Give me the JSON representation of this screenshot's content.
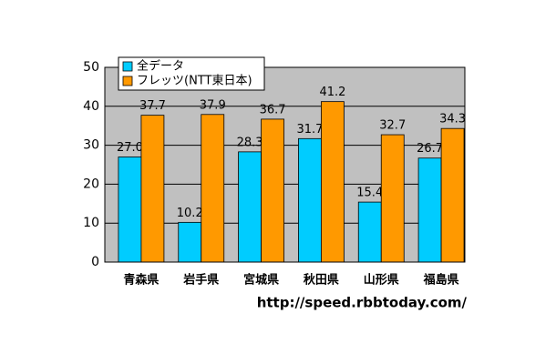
{
  "chart_data": {
    "type": "bar",
    "categories": [
      "青森県",
      "岩手県",
      "宮城県",
      "秋田県",
      "山形県",
      "福島県"
    ],
    "series": [
      {
        "name": "全データ",
        "color": "#00ccff",
        "values": [
          27.0,
          10.2,
          28.3,
          31.7,
          15.4,
          26.7
        ],
        "value_labels": [
          "27.0",
          "10.2",
          "28.3",
          "31.7",
          "15.4",
          "26.7"
        ]
      },
      {
        "name": "フレッツ(NTT東日本)",
        "color": "#ff9900",
        "values": [
          37.7,
          37.9,
          36.7,
          41.2,
          32.7,
          34.3
        ]
      }
    ],
    "ylim": [
      0,
      50
    ],
    "yticks": [
      0,
      10,
      20,
      30,
      40,
      50
    ],
    "grid": true,
    "legend": "top-left",
    "annotation": "http://speed.rbbtoday.com/"
  }
}
